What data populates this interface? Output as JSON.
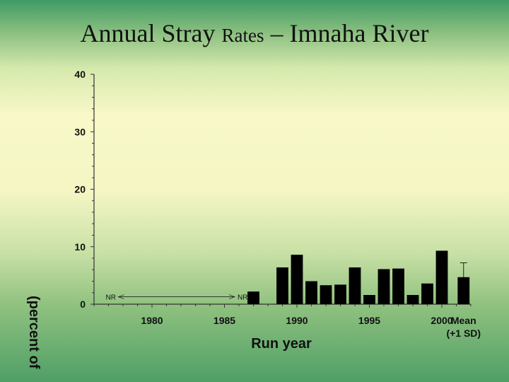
{
  "title": {
    "part1": "Annual Stray ",
    "part2": "Rates",
    "part3": " – Imnaha River"
  },
  "chart_data": {
    "type": "bar",
    "title": "Annual Stray Rates – Imnaha River",
    "xlabel": "Run year",
    "ylabel": "(percent of",
    "ylim": [
      0,
      40
    ],
    "yticks": [
      0,
      10,
      20,
      30,
      40
    ],
    "xlim": [
      1976,
      2002
    ],
    "xticks": [
      1980,
      1985,
      1990,
      1995,
      2000
    ],
    "mean_label_line1": "Mean",
    "mean_label_line2": "(+1 SD)",
    "nr_label": "NR",
    "nr_range": [
      1977,
      1986
    ],
    "x": [
      1987,
      1989,
      1990,
      1991,
      1992,
      1993,
      1994,
      1995,
      1996,
      1997,
      1998,
      1999,
      2000
    ],
    "values": [
      2.2,
      6.4,
      8.6,
      4.0,
      3.3,
      3.4,
      6.4,
      1.6,
      6.1,
      6.2,
      1.6,
      3.6,
      9.3
    ],
    "mean": {
      "value": 4.7,
      "sd": 2.5
    },
    "colors": {
      "bar": "#000000",
      "axis": "#333333"
    }
  }
}
